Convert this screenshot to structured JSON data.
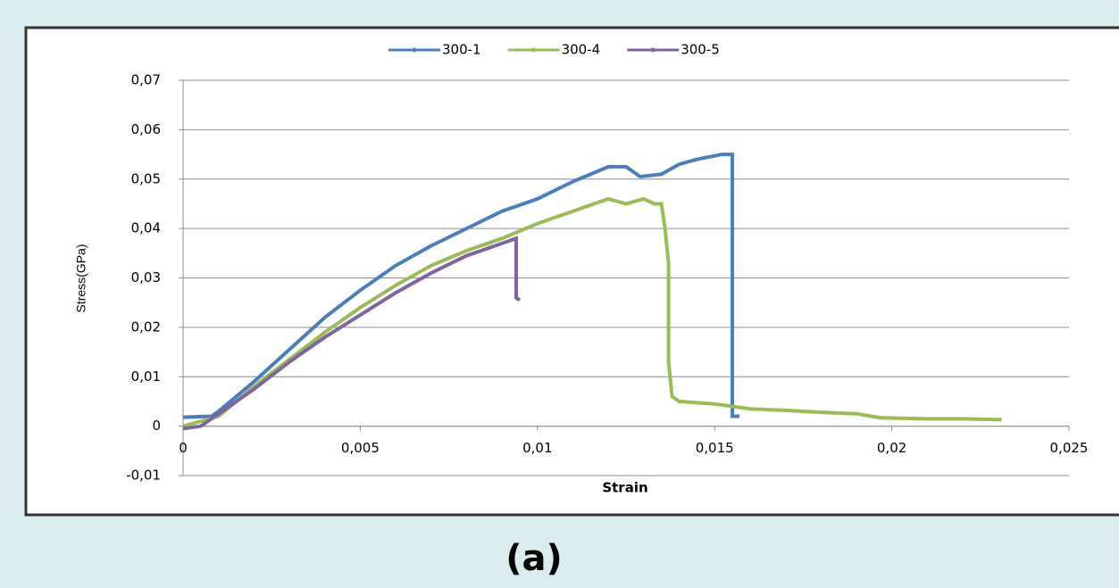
{
  "chart_data": {
    "type": "line",
    "x_label": "Strain",
    "y_label": "Stress(GPa)",
    "xlim": [
      0,
      0.025
    ],
    "xticks": [
      0,
      {
        "value": 0.005,
        "label": "0,005"
      },
      {
        "value": 0.01,
        "label": "0,01"
      },
      {
        "value": 0.015,
        "label": "0,015"
      },
      {
        "value": 0.02,
        "label": "0,02"
      },
      {
        "value": 0.025,
        "label": "0,025"
      }
    ],
    "ylim": [
      -0.01,
      0.07
    ],
    "yticks": [
      {
        "value": -0.01,
        "label": "-0,01"
      },
      0,
      {
        "value": 0.01,
        "label": "0,01"
      },
      {
        "value": 0.02,
        "label": "0,02"
      },
      {
        "value": 0.03,
        "label": "0,03"
      },
      {
        "value": 0.04,
        "label": "0,04"
      },
      {
        "value": 0.05,
        "label": "0,05"
      },
      {
        "value": 0.06,
        "label": "0,06"
      },
      {
        "value": 0.07,
        "label": "0,07"
      }
    ],
    "grid": true,
    "legend": "top",
    "series": [
      {
        "name": "300-1",
        "color": "#4a7ebb",
        "x": [
          0,
          0.0008,
          0.001,
          0.002,
          0.003,
          0.004,
          0.005,
          0.006,
          0.007,
          0.008,
          0.009,
          0.01,
          0.011,
          0.012,
          0.0125,
          0.0129,
          0.0135,
          0.014,
          0.0145,
          0.0152,
          0.0155,
          0.0155,
          0.0157
        ],
        "values": [
          0.0018,
          0.002,
          0.003,
          0.009,
          0.0155,
          0.022,
          0.0275,
          0.0325,
          0.0365,
          0.04,
          0.0435,
          0.046,
          0.0495,
          0.0525,
          0.0525,
          0.0505,
          0.051,
          0.053,
          0.054,
          0.055,
          0.055,
          0.002,
          0.002
        ]
      },
      {
        "name": "300-4",
        "color": "#9bbb59",
        "x": [
          0,
          0.001,
          0.002,
          0.003,
          0.004,
          0.005,
          0.006,
          0.007,
          0.008,
          0.009,
          0.01,
          0.011,
          0.012,
          0.0125,
          0.013,
          0.0133,
          0.0135,
          0.0136,
          0.0137,
          0.0137,
          0.0138,
          0.014,
          0.015,
          0.0155,
          0.016,
          0.017,
          0.018,
          0.019,
          0.0197,
          0.021,
          0.022,
          0.0231
        ],
        "values": [
          0,
          0.002,
          0.008,
          0.0135,
          0.019,
          0.024,
          0.0285,
          0.0325,
          0.0355,
          0.038,
          0.041,
          0.0435,
          0.046,
          0.045,
          0.046,
          0.045,
          0.045,
          0.04,
          0.033,
          0.013,
          0.006,
          0.005,
          0.0045,
          0.004,
          0.0035,
          0.0032,
          0.0028,
          0.0025,
          0.0017,
          0.0015,
          0.0015,
          0.0013
        ]
      },
      {
        "name": "300-5",
        "color": "#8064a2",
        "x": [
          0,
          0.0005,
          0.001,
          0.002,
          0.003,
          0.004,
          0.005,
          0.006,
          0.007,
          0.008,
          0.009,
          0.0094,
          0.0094,
          0.0095
        ],
        "values": [
          -0.0005,
          0,
          0.0025,
          0.0075,
          0.013,
          0.018,
          0.0225,
          0.027,
          0.031,
          0.0345,
          0.037,
          0.038,
          0.026,
          0.0255
        ]
      }
    ]
  },
  "caption": "(a)"
}
